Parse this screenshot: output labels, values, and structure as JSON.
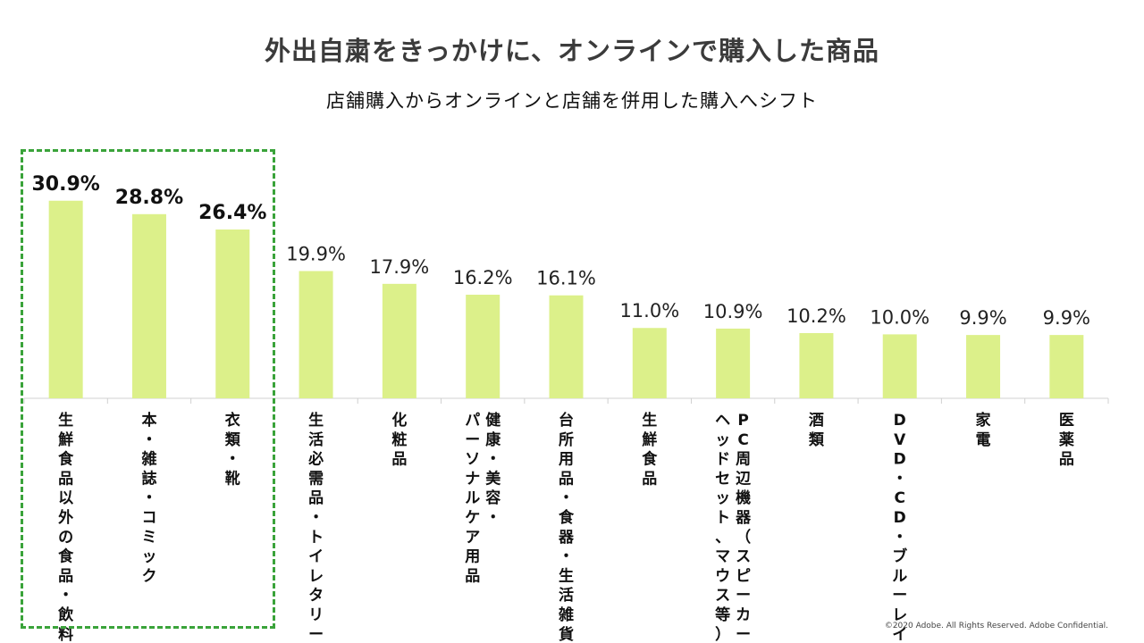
{
  "title": "外出自粛をきっかけに、オンラインで購入した商品",
  "subtitle": "店舗購入からオンラインと店舗を併用した購入へシフト",
  "copyright": "©2020 Adobe. All Rights Reserved. Adobe Confidential.",
  "chart_data": {
    "type": "bar",
    "title": "外出自粛をきっかけに、オンラインで購入した商品",
    "subtitle": "店舗購入からオンラインと店舗を併用した購入へシフト",
    "categories": [
      "生鮮食品以外の食品・飲料",
      "本・雑誌・コミック",
      "衣類・靴",
      "生活必需品・トイレタリー",
      "化粧品",
      "健康・美容・パーソナルケア用品",
      "台所用品・食器・生活雑貨",
      "生鮮食品",
      "PC周辺機器（スピーカー、ヘッドセット、マウス等）",
      "酒類",
      "DVD・CD・ブルーレイ",
      "家電",
      "医薬品"
    ],
    "category_lines": [
      [
        "生鮮食品以外の食品・飲料"
      ],
      [
        "本・雑誌・コミック"
      ],
      [
        "衣類・靴"
      ],
      [
        "生活必需品・トイレタリー"
      ],
      [
        "化粧品"
      ],
      [
        "健康・美容・",
        "パーソナルケア用品"
      ],
      [
        "台所用品・食器・生活雑貨"
      ],
      [
        "生鮮食品"
      ],
      [
        "PC周辺機器（スピーカー、",
        "ヘッドセット、マウス等）"
      ],
      [
        "酒類"
      ],
      [
        "DVD・CD・ブルーレイ"
      ],
      [
        "家電"
      ],
      [
        "医薬品"
      ]
    ],
    "values": [
      30.9,
      28.8,
      26.4,
      19.9,
      17.9,
      16.2,
      16.1,
      11.0,
      10.9,
      10.2,
      10.0,
      9.9,
      9.9
    ],
    "labels": [
      "30.9%",
      "28.8%",
      "26.4%",
      "19.9%",
      "17.9%",
      "16.2%",
      "16.1%",
      "11.0%",
      "10.9%",
      "10.2%",
      "10.0%",
      "9.9%",
      "9.9%"
    ],
    "highlighted_count": 3,
    "ylim": [
      0,
      33
    ],
    "grid": false,
    "legend": "none",
    "colors": {
      "bar": "#dcf08a",
      "axis": "#d0d0d0",
      "highlight_border": "#3aa33a"
    }
  }
}
